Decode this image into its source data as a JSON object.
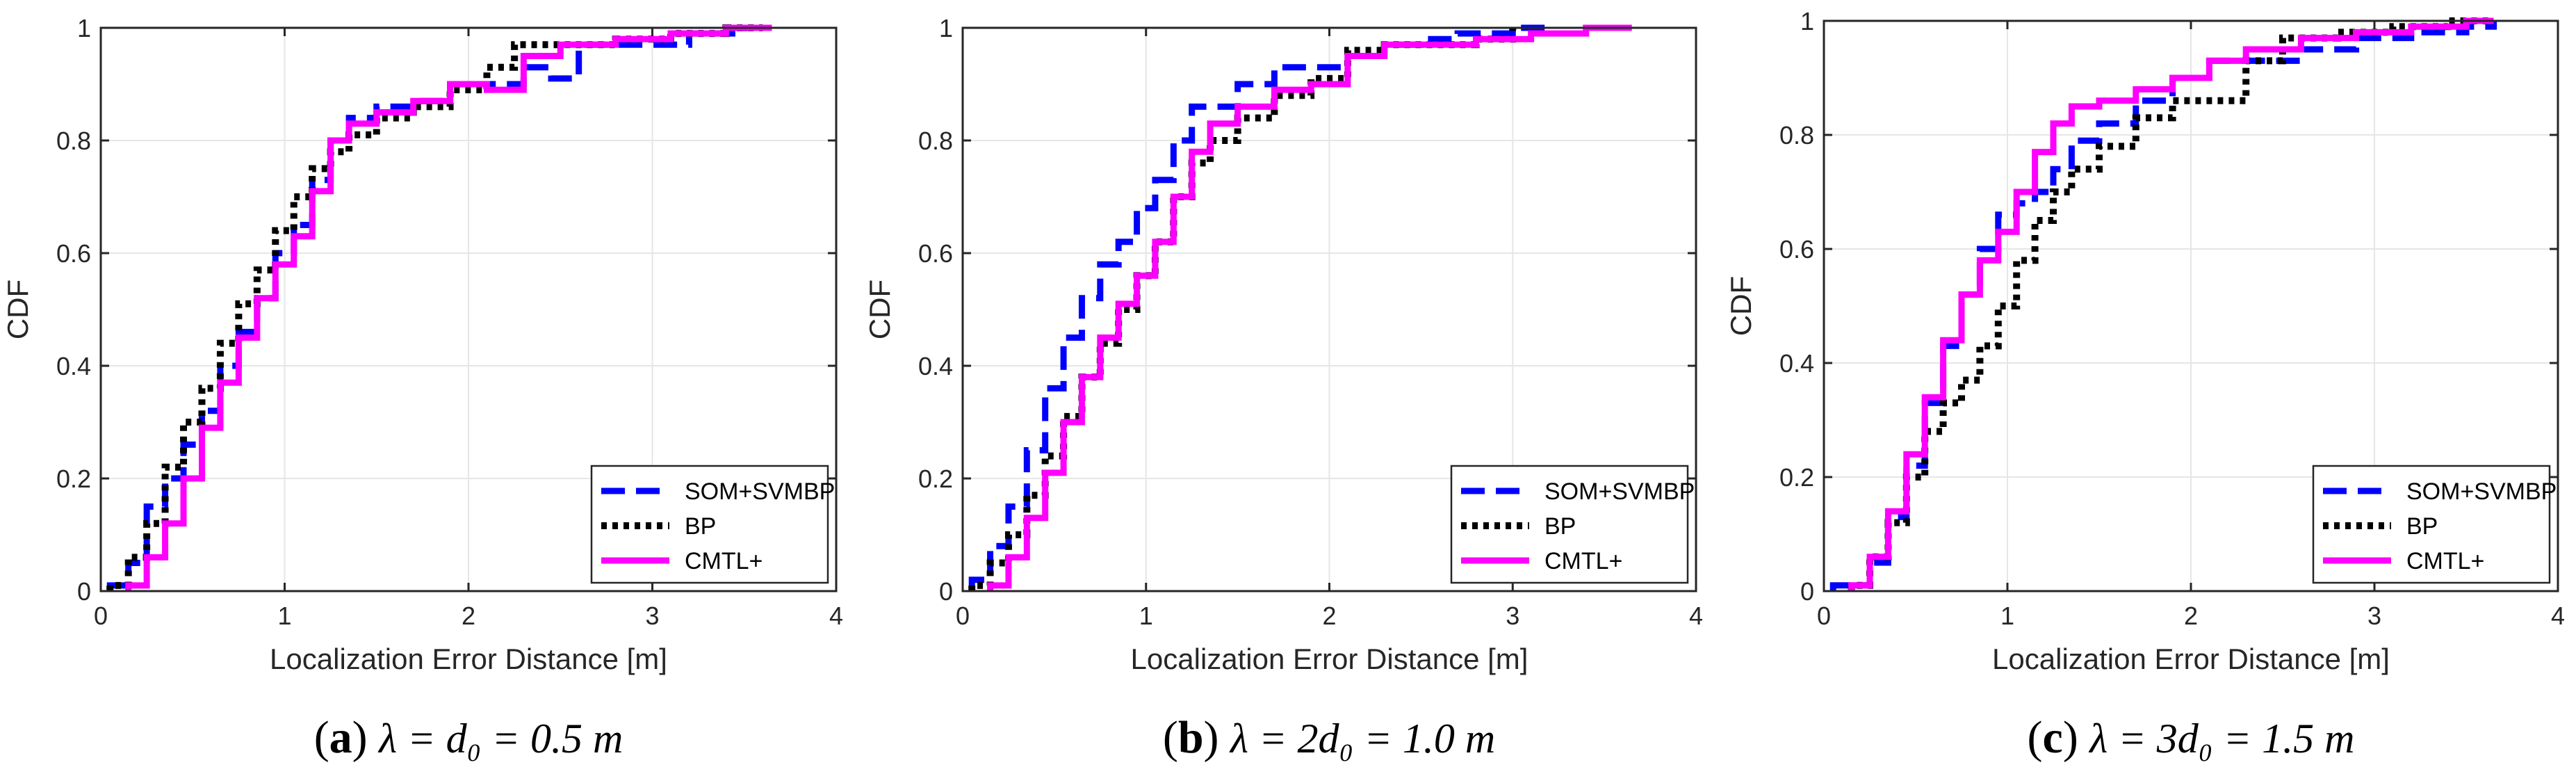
{
  "colors": {
    "som": "#0000ff",
    "bp": "#000000",
    "cmtl": "#ff00ff"
  },
  "chart_data": [
    {
      "type": "line",
      "caption_letter": "a",
      "caption_text": "λ = d₀ = 0.5 m",
      "xlabel": "Localization Error Distance [m]",
      "ylabel": "CDF",
      "xlim": [
        0,
        4
      ],
      "ylim": [
        0,
        1
      ],
      "xticks": [
        "0",
        "1",
        "2",
        "3",
        "4"
      ],
      "yticks": [
        "0",
        "0.2",
        "0.4",
        "0.6",
        "0.8",
        "1"
      ],
      "grid": true,
      "legend_position": "bottom-right",
      "series": [
        {
          "name": "SOM+SVMBP",
          "style": "dashed",
          "x": [
            0.05,
            0.15,
            0.25,
            0.35,
            0.45,
            0.55,
            0.65,
            0.75,
            0.85,
            0.95,
            1.05,
            1.15,
            1.25,
            1.35,
            1.5,
            1.7,
            1.9,
            2.1,
            2.3,
            2.45,
            2.6,
            2.9,
            3.2,
            3.5
          ],
          "y": [
            0.01,
            0.05,
            0.15,
            0.2,
            0.26,
            0.32,
            0.4,
            0.46,
            0.52,
            0.6,
            0.65,
            0.73,
            0.8,
            0.84,
            0.86,
            0.87,
            0.9,
            0.9,
            0.93,
            0.91,
            0.97,
            0.97,
            0.99,
            1.0
          ]
        },
        {
          "name": "BP",
          "style": "dotted",
          "x": [
            0.05,
            0.15,
            0.25,
            0.35,
            0.45,
            0.55,
            0.65,
            0.75,
            0.85,
            0.95,
            1.05,
            1.15,
            1.25,
            1.35,
            1.5,
            1.7,
            1.9,
            2.1,
            2.25,
            2.5,
            2.8,
            3.1,
            3.4,
            3.6
          ],
          "y": [
            0.01,
            0.06,
            0.12,
            0.22,
            0.3,
            0.36,
            0.44,
            0.51,
            0.57,
            0.64,
            0.7,
            0.75,
            0.78,
            0.81,
            0.84,
            0.86,
            0.89,
            0.93,
            0.97,
            0.97,
            0.98,
            0.99,
            1.0,
            1.0
          ]
        },
        {
          "name": "CMTL+",
          "style": "solid",
          "x": [
            0.15,
            0.25,
            0.35,
            0.45,
            0.55,
            0.65,
            0.75,
            0.85,
            0.95,
            1.05,
            1.15,
            1.25,
            1.35,
            1.5,
            1.7,
            1.9,
            2.1,
            2.3,
            2.5,
            2.8,
            3.1,
            3.4,
            3.65
          ],
          "y": [
            0.01,
            0.06,
            0.12,
            0.2,
            0.29,
            0.37,
            0.45,
            0.52,
            0.58,
            0.63,
            0.71,
            0.8,
            0.83,
            0.85,
            0.87,
            0.9,
            0.89,
            0.95,
            0.97,
            0.98,
            0.99,
            1.0,
            1.0
          ]
        }
      ]
    },
    {
      "type": "line",
      "caption_letter": "b",
      "caption_text": "λ = 2d₀ = 1.0 m",
      "xlabel": "Localization Error Distance [m]",
      "ylabel": "CDF",
      "xlim": [
        0,
        4
      ],
      "ylim": [
        0,
        1
      ],
      "xticks": [
        "0",
        "1",
        "2",
        "3",
        "4"
      ],
      "yticks": [
        "0",
        "0.2",
        "0.4",
        "0.6",
        "0.8",
        "1"
      ],
      "grid": true,
      "legend_position": "bottom-right",
      "series": [
        {
          "name": "SOM+SVMBP",
          "style": "dashed",
          "x": [
            0.05,
            0.15,
            0.25,
            0.35,
            0.45,
            0.55,
            0.65,
            0.75,
            0.85,
            0.95,
            1.05,
            1.15,
            1.25,
            1.35,
            1.5,
            1.7,
            1.9,
            2.1,
            2.3,
            2.5,
            2.7,
            3.0,
            3.2
          ],
          "y": [
            0.02,
            0.08,
            0.15,
            0.25,
            0.36,
            0.45,
            0.52,
            0.58,
            0.62,
            0.68,
            0.73,
            0.8,
            0.86,
            0.86,
            0.9,
            0.93,
            0.93,
            0.95,
            0.97,
            0.98,
            0.99,
            1.0,
            1.0
          ]
        },
        {
          "name": "BP",
          "style": "dotted",
          "x": [
            0.05,
            0.15,
            0.25,
            0.35,
            0.45,
            0.55,
            0.65,
            0.75,
            0.85,
            0.95,
            1.05,
            1.15,
            1.25,
            1.35,
            1.5,
            1.7,
            1.9,
            2.1,
            2.3,
            2.5,
            2.8,
            3.0
          ],
          "y": [
            0.01,
            0.05,
            0.1,
            0.17,
            0.24,
            0.31,
            0.38,
            0.44,
            0.5,
            0.56,
            0.62,
            0.7,
            0.76,
            0.8,
            0.84,
            0.88,
            0.91,
            0.96,
            0.97,
            0.97,
            0.98,
            1.0
          ]
        },
        {
          "name": "CMTL+",
          "style": "solid",
          "x": [
            0.15,
            0.25,
            0.35,
            0.45,
            0.55,
            0.65,
            0.75,
            0.85,
            0.95,
            1.05,
            1.15,
            1.25,
            1.35,
            1.5,
            1.7,
            1.9,
            2.1,
            2.3,
            2.5,
            2.8,
            3.1,
            3.4,
            3.65
          ],
          "y": [
            0.01,
            0.06,
            0.13,
            0.21,
            0.3,
            0.38,
            0.45,
            0.51,
            0.56,
            0.62,
            0.7,
            0.78,
            0.83,
            0.86,
            0.89,
            0.9,
            0.95,
            0.97,
            0.97,
            0.98,
            0.99,
            1.0,
            1.0
          ]
        }
      ]
    },
    {
      "type": "line",
      "caption_letter": "c",
      "caption_text": "λ = 3d₀ = 1.5 m",
      "xlabel": "Localization Error Distance [m]",
      "ylabel": "CDF",
      "xlim": [
        0,
        4
      ],
      "ylim": [
        0,
        1
      ],
      "xticks": [
        "0",
        "1",
        "2",
        "3",
        "4"
      ],
      "yticks": [
        "0",
        "0.2",
        "0.4",
        "0.6",
        "0.8",
        "1"
      ],
      "grid": true,
      "legend_position": "bottom-right",
      "series": [
        {
          "name": "SOM+SVMBP",
          "style": "dashed",
          "x": [
            0.05,
            0.15,
            0.25,
            0.35,
            0.45,
            0.55,
            0.65,
            0.75,
            0.85,
            0.95,
            1.05,
            1.15,
            1.25,
            1.35,
            1.5,
            1.7,
            1.9,
            2.1,
            2.3,
            2.6,
            2.9,
            3.2,
            3.5,
            3.65
          ],
          "y": [
            0.01,
            0.01,
            0.05,
            0.13,
            0.22,
            0.33,
            0.43,
            0.52,
            0.6,
            0.66,
            0.68,
            0.7,
            0.74,
            0.79,
            0.82,
            0.86,
            0.9,
            0.93,
            0.93,
            0.95,
            0.97,
            0.98,
            0.99,
            1.0
          ]
        },
        {
          "name": "BP",
          "style": "dotted",
          "x": [
            0.15,
            0.25,
            0.35,
            0.45,
            0.55,
            0.65,
            0.75,
            0.85,
            0.95,
            1.05,
            1.15,
            1.25,
            1.35,
            1.5,
            1.7,
            1.9,
            2.1,
            2.3,
            2.5,
            2.8,
            3.1,
            3.4,
            3.65
          ],
          "y": [
            0.01,
            0.06,
            0.12,
            0.2,
            0.28,
            0.33,
            0.37,
            0.43,
            0.5,
            0.58,
            0.65,
            0.7,
            0.74,
            0.78,
            0.83,
            0.86,
            0.86,
            0.93,
            0.97,
            0.98,
            0.99,
            1.0,
            1.0
          ]
        },
        {
          "name": "CMTL+",
          "style": "solid",
          "x": [
            0.15,
            0.25,
            0.35,
            0.45,
            0.55,
            0.65,
            0.75,
            0.85,
            0.95,
            1.05,
            1.15,
            1.25,
            1.35,
            1.5,
            1.7,
            1.9,
            2.1,
            2.3,
            2.6,
            2.9,
            3.2,
            3.5,
            3.65
          ],
          "y": [
            0.01,
            0.06,
            0.14,
            0.24,
            0.34,
            0.44,
            0.52,
            0.58,
            0.63,
            0.7,
            0.77,
            0.82,
            0.85,
            0.86,
            0.88,
            0.9,
            0.93,
            0.95,
            0.97,
            0.98,
            0.99,
            1.0,
            1.0
          ]
        }
      ]
    }
  ]
}
